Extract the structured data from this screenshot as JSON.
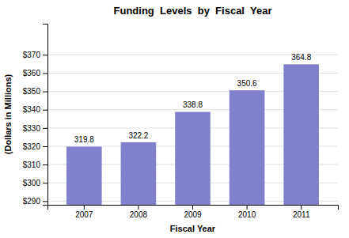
{
  "chart_data": {
    "type": "bar",
    "title": "Funding  Levels  by  Fiscal  Year",
    "xlabel": "Fiscal Year",
    "ylabel": "(Dollars in Millions)",
    "categories": [
      "2007",
      "2008",
      "2009",
      "2010",
      "2011"
    ],
    "values": [
      319.8,
      322.2,
      338.8,
      350.6,
      364.8
    ],
    "color": "#8080cc",
    "ylim": [
      288,
      387
    ],
    "yticks": [
      {
        "value": 290,
        "label": "$290"
      },
      {
        "value": 300,
        "label": "$300"
      },
      {
        "value": 310,
        "label": "$310"
      },
      {
        "value": 320,
        "label": "$320"
      },
      {
        "value": 330,
        "label": "$330"
      },
      {
        "value": 340,
        "label": "$340"
      },
      {
        "value": 350,
        "label": "$350"
      },
      {
        "value": 360,
        "label": "$360"
      },
      {
        "value": 370,
        "label": "$370"
      }
    ],
    "grid": true,
    "data_labels": true
  }
}
